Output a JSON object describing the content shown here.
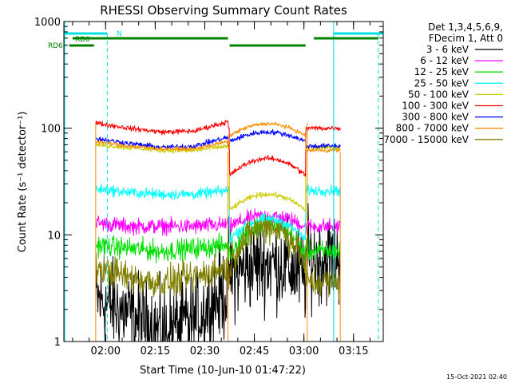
{
  "chart_data": {
    "type": "line",
    "title": "RHESSI Observing Summary Count Rates",
    "xlabel": "Start Time (10-Jun-10 01:47:22)",
    "ylabel": "Count Rate (s⁻¹ detector⁻¹)",
    "yscale": "log",
    "ylim": [
      1,
      1000
    ],
    "xlim": [
      "01:47:22",
      "03:24:00"
    ],
    "x_ticks": [
      "02:00",
      "02:15",
      "02:30",
      "02:45",
      "03:00",
      "03:15"
    ],
    "y_ticks": [
      "1",
      "10",
      "100",
      "1000"
    ],
    "legend_position": "right",
    "legend_header": [
      "Det 1,3,4,5,6,9,",
      "FDecim 1, Att 0"
    ],
    "timestamp": "15-Oct-2021 02:40",
    "flag_labels": {
      "n": "N",
      "rd0": "RD0",
      "rd6": "RD6"
    },
    "colors": {
      "night": "#00e0e0",
      "rd0": "#008000",
      "rd6": "#008000"
    },
    "flags": {
      "night_intervals": [
        [
          "01:47:22",
          "02:00:30"
        ],
        [
          "03:09:00",
          "03:24:00"
        ]
      ],
      "night_markers": [
        "02:00:30",
        "03:09:00",
        "03:22:30"
      ],
      "rd0_intervals": [
        [
          "01:50:00",
          "02:37:00"
        ],
        [
          "03:03:00",
          "03:22:30"
        ]
      ],
      "rd6_intervals": [
        [
          "01:49:00",
          "01:56:30"
        ],
        [
          "02:37:30",
          "03:00:30"
        ]
      ]
    },
    "data_intervals": [
      [
        "01:57:00",
        "02:37:00"
      ],
      [
        "03:01:00",
        "03:11:00"
      ]
    ],
    "series": [
      {
        "name": "3 - 6 keV",
        "color": "#000000",
        "day": [
          2.5,
          1.8,
          1.2,
          1.6,
          3
        ],
        "dip": [
          4,
          5.5,
          4
        ],
        "peak": [
          6,
          6,
          6
        ],
        "noise": 0.35
      },
      {
        "name": "6 - 12 keV",
        "color": "#ff00ff",
        "day": [
          13,
          12,
          12,
          12,
          12.5
        ],
        "dip": [
          12,
          15,
          12
        ],
        "peak": [
          12,
          12,
          12
        ],
        "noise": 0.06
      },
      {
        "name": "12 - 25 keV",
        "color": "#00e000",
        "day": [
          8,
          7.5,
          7,
          7.5,
          8
        ],
        "dip": [
          6.5,
          12.5,
          6.5
        ],
        "peak": [
          7,
          7,
          7
        ],
        "noise": 0.08
      },
      {
        "name": "25 - 50 keV",
        "color": "#00ffff",
        "day": [
          27,
          25,
          24,
          24,
          26
        ],
        "dip": [
          9,
          14,
          9
        ],
        "peak": [
          26,
          26,
          26
        ],
        "noise": 0.04
      },
      {
        "name": "50 - 100 keV",
        "color": "#cccc00",
        "day": [
          70,
          66,
          62,
          62,
          68
        ],
        "dip": [
          17,
          24,
          17
        ],
        "peak": [
          66,
          66,
          66
        ],
        "noise": 0.02
      },
      {
        "name": "100 - 300 keV",
        "color": "#ff0000",
        "day": [
          112,
          100,
          92,
          94,
          115
        ],
        "dip": [
          36,
          52,
          36
        ],
        "peak": [
          100,
          100,
          100
        ],
        "noise": 0.02
      },
      {
        "name": "300 - 800 keV",
        "color": "#0000ff",
        "day": [
          80,
          72,
          66,
          68,
          82
        ],
        "dip": [
          75,
          92,
          75
        ],
        "peak": [
          68,
          68,
          68
        ],
        "noise": 0.02
      },
      {
        "name": "800 - 7000 keV",
        "color": "#ff8c00",
        "day": [
          75,
          68,
          64,
          64,
          75
        ],
        "dip": [
          85,
          110,
          85
        ],
        "peak": [
          62,
          62,
          62
        ],
        "noise": 0.015
      },
      {
        "name": "7000 - 15000 keV",
        "color": "#808000",
        "day": [
          5,
          4,
          3.5,
          4,
          5
        ],
        "dip": [
          5,
          12,
          5
        ],
        "peak": [
          3.6,
          3.6,
          3.6
        ],
        "noise": 0.12
      }
    ]
  }
}
